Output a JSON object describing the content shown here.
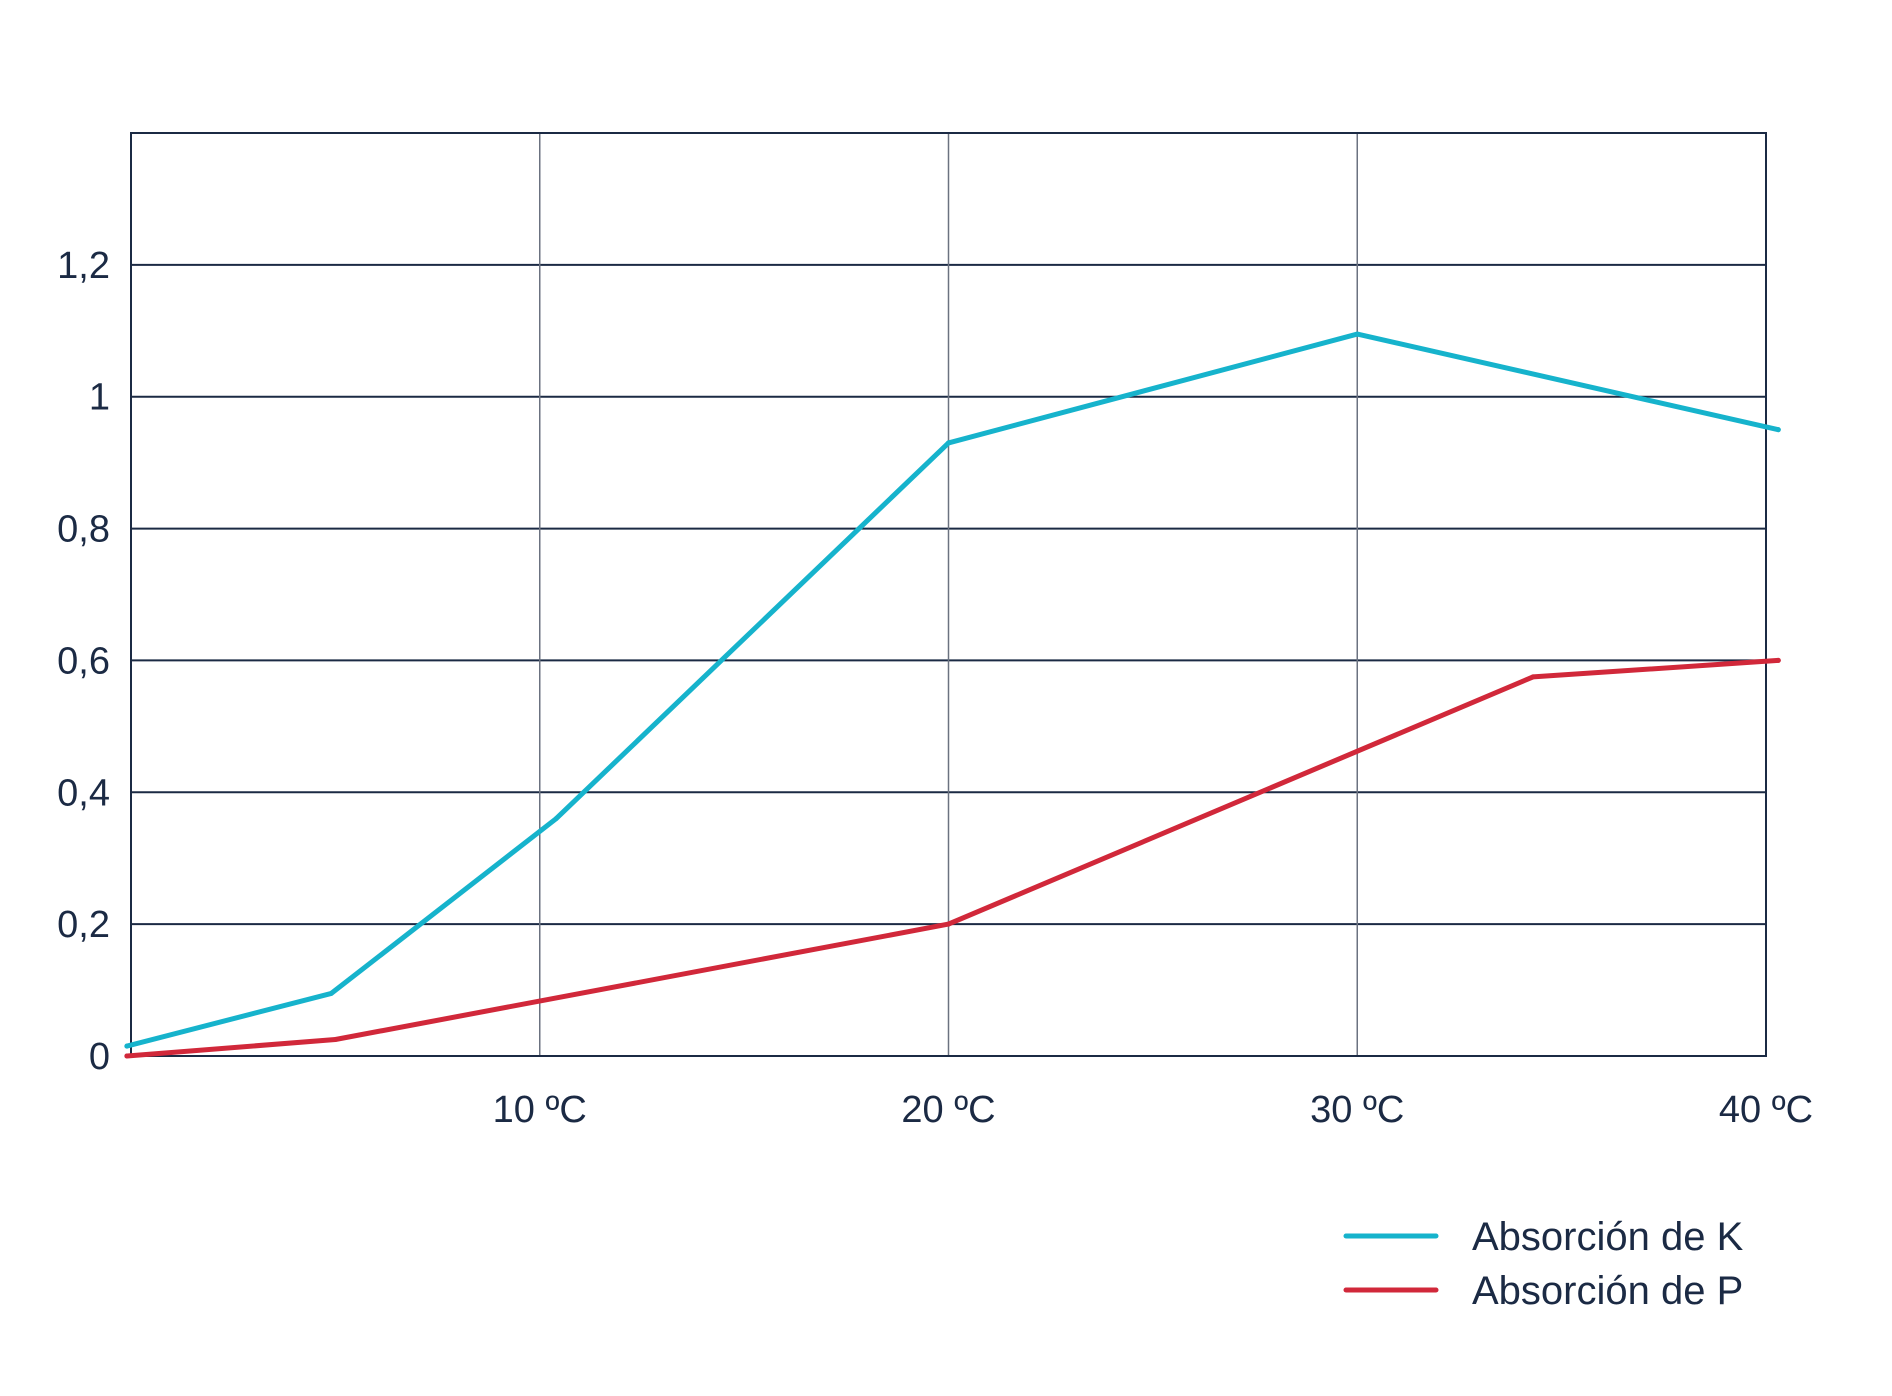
{
  "chart_data": {
    "type": "line",
    "title": "",
    "xlabel": "",
    "ylabel": "",
    "xlim": [
      0,
      40
    ],
    "ylim": [
      0,
      1.4
    ],
    "x_ticks": [
      {
        "value": 10,
        "label": "10 ºC"
      },
      {
        "value": 20,
        "label": "20 ºC"
      },
      {
        "value": 30,
        "label": "30 ºC"
      },
      {
        "value": 40,
        "label": "40 ºC"
      }
    ],
    "y_ticks": [
      {
        "value": 0,
        "label": "0"
      },
      {
        "value": 0.2,
        "label": "0,2"
      },
      {
        "value": 0.4,
        "label": "0,4"
      },
      {
        "value": 0.6,
        "label": "0,6"
      },
      {
        "value": 0.8,
        "label": "0,8"
      },
      {
        "value": 1.0,
        "label": "1"
      },
      {
        "value": 1.2,
        "label": "1,2"
      }
    ],
    "grid": true,
    "legend_position": "bottom-right",
    "series": [
      {
        "name": "Absorción de K",
        "color": "#16b3cc",
        "x": [
          -0.1,
          4.9,
          10.4,
          20,
          30,
          40.3
        ],
        "y": [
          0.015,
          0.095,
          0.36,
          0.93,
          1.095,
          0.95
        ]
      },
      {
        "name": "Absorción de P",
        "color": "#d1283a",
        "x": [
          -0.1,
          5.0,
          20,
          34.3,
          40.3
        ],
        "y": [
          0.0,
          0.025,
          0.2,
          0.575,
          0.6
        ]
      }
    ]
  }
}
